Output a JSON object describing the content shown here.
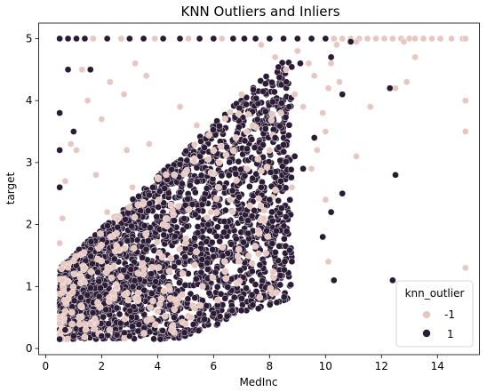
{
  "chart_data": {
    "type": "scatter",
    "title": "KNN Outliers and Inliers",
    "xlabel": "MedInc",
    "ylabel": "target",
    "xlim": [
      -0.25,
      15.5
    ],
    "ylim": [
      -0.1,
      5.25
    ],
    "x_ticks": [
      0,
      2,
      4,
      6,
      8,
      10,
      12,
      14
    ],
    "y_ticks": [
      0,
      1,
      2,
      3,
      4,
      5
    ],
    "legend": {
      "title": "knn_outlier",
      "position": "lower-right",
      "entries": [
        {
          "label": "-1",
          "color": "#e8c7c0"
        },
        {
          "label": "1",
          "color": "#2b1b35"
        }
      ]
    },
    "series": [
      {
        "name": "-1",
        "color": "#e8c7c0",
        "points": [
          [
            10.3,
            5.0
          ],
          [
            10.6,
            5.0
          ],
          [
            10.9,
            5.0
          ],
          [
            11.2,
            5.0
          ],
          [
            11.5,
            5.0
          ],
          [
            11.8,
            5.0
          ],
          [
            12.1,
            5.0
          ],
          [
            12.4,
            5.0
          ],
          [
            12.7,
            5.0
          ],
          [
            13.0,
            5.0
          ],
          [
            13.2,
            5.0
          ],
          [
            13.5,
            5.0
          ],
          [
            13.8,
            5.0
          ],
          [
            14.1,
            5.0
          ],
          [
            14.5,
            5.0
          ],
          [
            14.9,
            5.0
          ],
          [
            15.0,
            5.0
          ],
          [
            15.0,
            4.0
          ],
          [
            15.0,
            3.5
          ],
          [
            15.0,
            1.3
          ],
          [
            13.2,
            4.7
          ],
          [
            12.8,
            4.95
          ],
          [
            11.1,
            4.95
          ],
          [
            10.2,
            4.6
          ],
          [
            10.1,
            4.2
          ],
          [
            10.5,
            4.3
          ],
          [
            9.6,
            4.4
          ],
          [
            9.2,
            3.9
          ],
          [
            11.6,
            3.9
          ],
          [
            10.0,
            3.5
          ],
          [
            10.1,
            1.4
          ],
          [
            10.0,
            2.4
          ],
          [
            11.1,
            3.1
          ],
          [
            9.7,
            3.2
          ],
          [
            12.9,
            4.3
          ],
          [
            12.5,
            4.2
          ],
          [
            9.0,
            4.8
          ],
          [
            9.4,
            4.6
          ],
          [
            8.9,
            4.1
          ],
          [
            10.4,
            4.9
          ],
          [
            0.7,
            2.7
          ],
          [
            0.9,
            3.3
          ],
          [
            1.6,
            0.4
          ],
          [
            1.2,
            0.5
          ],
          [
            2.0,
            3.7
          ],
          [
            2.8,
            4.1
          ],
          [
            3.2,
            4.6
          ],
          [
            4.5,
            0.3
          ],
          [
            5.2,
            0.5
          ],
          [
            4.0,
            0.6
          ],
          [
            7.3,
            2.3
          ],
          [
            7.8,
            2.1
          ],
          [
            8.4,
            3.8
          ],
          [
            7.0,
            4.1
          ],
          [
            0.6,
            1.1
          ],
          [
            0.7,
            0.6
          ],
          [
            0.5,
            0.4
          ],
          [
            0.5,
            1.7
          ],
          [
            0.6,
            2.1
          ],
          [
            1.1,
            3.2
          ],
          [
            1.5,
            4.0
          ],
          [
            2.3,
            4.3
          ],
          [
            3.6,
            4.4
          ],
          [
            5.6,
            1.0
          ],
          [
            6.4,
            1.4
          ],
          [
            6.9,
            1.6
          ],
          [
            7.6,
            1.9
          ],
          [
            8.8,
            2.6
          ],
          [
            9.5,
            2.9
          ],
          [
            9.9,
            3.8
          ],
          [
            8.6,
            4.5
          ],
          [
            8.2,
            4.7
          ],
          [
            7.7,
            4.9
          ],
          [
            6.3,
            5.0
          ],
          [
            5.1,
            5.0
          ],
          [
            3.9,
            5.0
          ],
          [
            2.7,
            5.0
          ],
          [
            1.7,
            5.0
          ],
          [
            1.3,
            4.5
          ],
          [
            1.8,
            2.8
          ],
          [
            2.2,
            2.2
          ],
          [
            2.6,
            1.6
          ],
          [
            3.1,
            2.6
          ],
          [
            3.5,
            1.2
          ],
          [
            3.7,
            3.3
          ],
          [
            4.2,
            2.0
          ],
          [
            4.6,
            2.8
          ],
          [
            5.0,
            1.7
          ],
          [
            5.4,
            3.6
          ],
          [
            5.9,
            2.2
          ],
          [
            6.2,
            3.0
          ],
          [
            6.6,
            2.4
          ],
          [
            6.8,
            3.4
          ],
          [
            7.2,
            2.9
          ],
          [
            7.4,
            3.6
          ],
          [
            8.0,
            3.2
          ],
          [
            2.4,
            0.9
          ],
          [
            3.3,
            0.8
          ],
          [
            4.4,
            1.0
          ],
          [
            1.4,
            1.3
          ],
          [
            2.9,
            3.2
          ],
          [
            4.8,
            3.9
          ]
        ]
      },
      {
        "name": "1",
        "color": "#2b1b35",
        "points": [
          [
            12.3,
            4.2
          ],
          [
            12.5,
            2.8
          ],
          [
            12.4,
            1.1
          ],
          [
            10.3,
            1.1
          ],
          [
            10.2,
            2.2
          ],
          [
            10.6,
            2.5
          ],
          [
            9.9,
            1.8
          ],
          [
            10.6,
            4.1
          ],
          [
            10.2,
            4.7
          ],
          [
            10.9,
            4.95
          ],
          [
            9.2,
            2.9
          ],
          [
            7.4,
            0.7
          ],
          [
            0.5,
            3.8
          ],
          [
            0.5,
            3.2
          ],
          [
            0.5,
            2.6
          ],
          [
            0.8,
            4.5
          ],
          [
            1.6,
            4.5
          ],
          [
            1.0,
            3.5
          ],
          [
            0.5,
            0.15
          ],
          [
            0.7,
            0.3
          ],
          [
            1.0,
            0.2
          ],
          [
            2.0,
            0.2
          ],
          [
            4.1,
            0.15
          ],
          [
            3.0,
            0.2
          ],
          [
            0.5,
            5.0
          ],
          [
            0.8,
            5.0
          ],
          [
            1.1,
            5.0
          ],
          [
            1.4,
            5.0
          ],
          [
            2.2,
            5.0
          ],
          [
            3.0,
            5.0
          ],
          [
            3.5,
            5.0
          ],
          [
            4.2,
            5.0
          ],
          [
            4.8,
            5.0
          ],
          [
            5.5,
            5.0
          ],
          [
            6.0,
            5.0
          ],
          [
            6.7,
            5.0
          ],
          [
            7.1,
            5.0
          ],
          [
            7.5,
            5.0
          ],
          [
            8.0,
            5.0
          ],
          [
            8.5,
            5.0
          ],
          [
            9.0,
            5.0
          ],
          [
            9.5,
            5.0
          ],
          [
            10.0,
            5.0
          ],
          [
            8.7,
            3.9
          ],
          [
            8.6,
            4.3
          ],
          [
            9.1,
            4.6
          ],
          [
            8.2,
            3.4
          ],
          [
            8.4,
            2.7
          ],
          [
            8.0,
            2.4
          ],
          [
            7.9,
            1.9
          ],
          [
            7.7,
            2.6
          ],
          [
            8.9,
            3.1
          ],
          [
            9.6,
            3.4
          ]
        ]
      }
    ]
  }
}
